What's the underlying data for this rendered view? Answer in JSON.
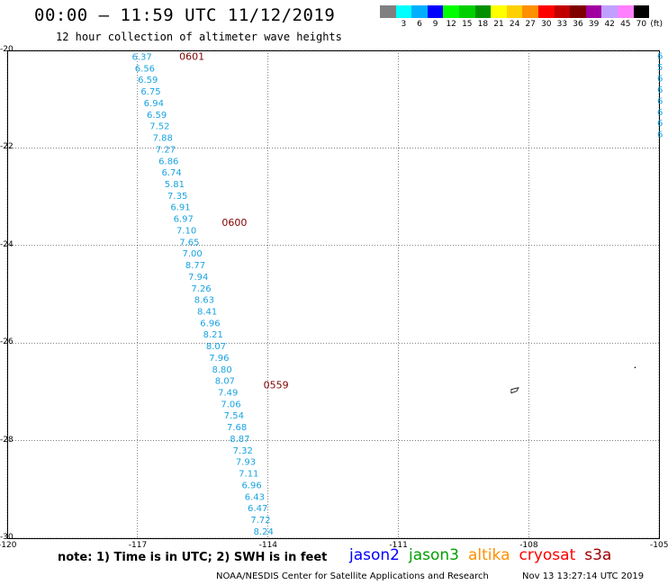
{
  "header": {
    "title": "00:00 — 11:59 UTC 11/12/2019",
    "subtitle": "12 hour collection of altimeter wave heights"
  },
  "legend": {
    "unit": "(ft)",
    "entries": [
      {
        "label": "",
        "color": "#808080"
      },
      {
        "label": "3",
        "color": "#00ffff"
      },
      {
        "label": "6",
        "color": "#00b0ff"
      },
      {
        "label": "9",
        "color": "#0000ff"
      },
      {
        "label": "12",
        "color": "#00ff00"
      },
      {
        "label": "15",
        "color": "#00d000"
      },
      {
        "label": "18",
        "color": "#009000"
      },
      {
        "label": "21",
        "color": "#ffff00"
      },
      {
        "label": "24",
        "color": "#ffd000"
      },
      {
        "label": "27",
        "color": "#ff9000"
      },
      {
        "label": "30",
        "color": "#ff0000"
      },
      {
        "label": "33",
        "color": "#c00000"
      },
      {
        "label": "36",
        "color": "#800000"
      },
      {
        "label": "39",
        "color": "#a000a0"
      },
      {
        "label": "42",
        "color": "#c0a0ff"
      },
      {
        "label": "45",
        "color": "#ff80ff"
      },
      {
        "label": "70",
        "color": "#000000"
      }
    ]
  },
  "map": {
    "lat_ticks": [
      "-20",
      "-22",
      "-24",
      "-26",
      "-28",
      "-30"
    ],
    "lon_ticks": [
      "-120",
      "-117",
      "-114",
      "-111",
      "-108",
      "-105"
    ],
    "lat_range": [
      -30,
      -20
    ],
    "lon_range": [
      -120,
      -105
    ],
    "track_color": "#1aa3e0",
    "time_color": "#800000",
    "track_main": [
      "6.37",
      "6.56",
      "6.59",
      "6.75",
      "6.94",
      "6.59",
      "7.52",
      "7.88",
      "7.27",
      "6.86",
      "6.74",
      "5.81",
      "7.35",
      "6.91",
      "6.97",
      "7.10",
      "7.65",
      "7.00",
      "8.77",
      "7.94",
      "7.26",
      "8.63",
      "8.41",
      "6.96",
      "8.21",
      "8.07",
      "7.96",
      "8.80",
      "8.07",
      "7.49",
      "7.06",
      "7.54",
      "7.68",
      "8.87",
      "7.32",
      "7.93",
      "7.11",
      "6.96",
      "6.43",
      "6.47",
      "7.72",
      "8.24"
    ],
    "times": [
      "0601",
      "0600",
      "0559"
    ],
    "track_edge": [
      "6",
      "5",
      "6",
      "6",
      "6",
      "6",
      "6",
      "6"
    ]
  },
  "footer": {
    "note": "note: 1) Time is in UTC; 2) SWH is in feet",
    "satellites": [
      {
        "name": "jason2",
        "color": "#0000ff"
      },
      {
        "name": "jason3",
        "color": "#00a000"
      },
      {
        "name": "altika",
        "color": "#ff9000"
      },
      {
        "name": "cryosat",
        "color": "#ff0000"
      },
      {
        "name": "s3a",
        "color": "#a00000"
      }
    ],
    "credit": "NOAA/NESDIS Center for Satellite Applications and Research",
    "timestamp": "Nov 13 13:27:14 UTC 2019"
  }
}
